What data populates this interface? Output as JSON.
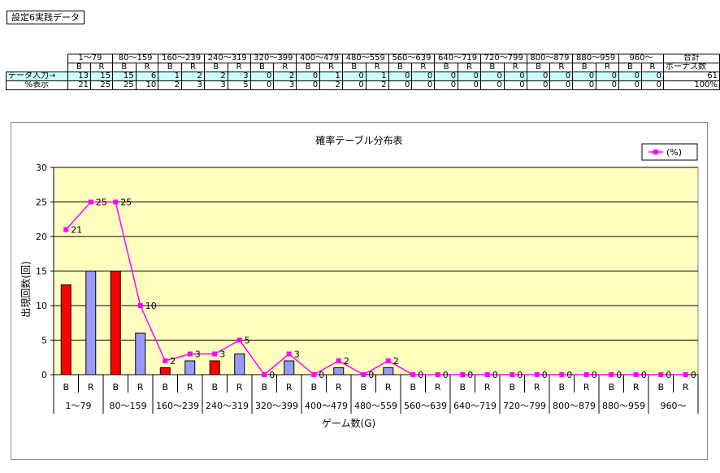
{
  "sheet_title": "設定6実践データ",
  "table": {
    "ranges": [
      "1～79",
      "80～159",
      "160～239",
      "240～319",
      "320～399",
      "400～479",
      "480～559",
      "560～639",
      "640～719",
      "720～799",
      "800～879",
      "880～959",
      "960～"
    ],
    "total_header": "合計",
    "sub_headers": [
      "B",
      "R"
    ],
    "total_sub_header": "ボーナス数",
    "input_label": "データ入力→",
    "input_values": [
      13,
      15,
      15,
      6,
      1,
      2,
      2,
      3,
      0,
      2,
      0,
      1,
      0,
      1,
      0,
      0,
      0,
      0,
      0,
      0,
      0,
      0,
      0,
      0,
      0,
      0
    ],
    "input_total": "61",
    "percent_label": "%表示",
    "percent_values": [
      21,
      25,
      25,
      10,
      2,
      3,
      3,
      5,
      0,
      3,
      0,
      2,
      0,
      2,
      0,
      0,
      0,
      0,
      0,
      0,
      0,
      0,
      0,
      0,
      0,
      0
    ],
    "percent_total": "100%"
  },
  "chart_data": {
    "type": "bar",
    "title": "確率テーブル分布表",
    "xlabel": "ゲーム数(G)",
    "ylabel": "出現回数(回)",
    "ylim": [
      0,
      30
    ],
    "yticks": [
      0,
      5,
      10,
      15,
      20,
      25,
      30
    ],
    "grid": true,
    "legend_position": "top-right",
    "groups": [
      "1～79",
      "80～159",
      "160～239",
      "240～319",
      "320～399",
      "400～479",
      "480～559",
      "560～639",
      "640～719",
      "720～799",
      "800～879",
      "880～959",
      "960～"
    ],
    "categories": [
      "B",
      "R",
      "B",
      "R",
      "B",
      "R",
      "B",
      "R",
      "B",
      "R",
      "B",
      "R",
      "B",
      "R",
      "B",
      "R",
      "B",
      "R",
      "B",
      "R",
      "B",
      "R",
      "B",
      "R",
      "B",
      "R"
    ],
    "bar_values": [
      13,
      15,
      15,
      6,
      1,
      2,
      2,
      3,
      0,
      2,
      0,
      1,
      0,
      1,
      0,
      0,
      0,
      0,
      0,
      0,
      0,
      0,
      0,
      0,
      0,
      0
    ],
    "line_series": {
      "name": "(%)",
      "values": [
        21,
        25,
        25,
        10,
        2,
        3,
        3,
        5,
        0,
        3,
        0,
        2,
        0,
        2,
        0,
        0,
        0,
        0,
        0,
        0,
        0,
        0,
        0,
        0,
        0,
        0
      ]
    },
    "colors": {
      "plot_bg": "#ffffc0",
      "bar_B": "#ff0000",
      "bar_R": "#9999ff",
      "line": "#ff00ff"
    }
  }
}
